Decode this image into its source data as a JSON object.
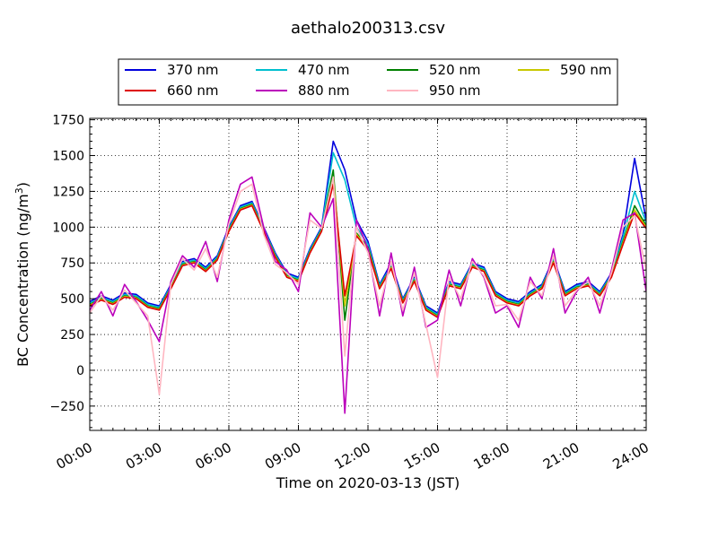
{
  "chart_data": {
    "type": "line",
    "title": "aethalo200313.csv",
    "xlabel": "Time on 2020-03-13 (JST)",
    "ylabel_main": "BC Concentration (ng/m",
    "ylabel_sup": "3",
    "ylabel_tail": ")",
    "xlim": [
      "00:00",
      "24:00"
    ],
    "ylim": [
      -420,
      1760
    ],
    "grid": true,
    "legend_position": "top-center",
    "x_ticks": [
      "00:00",
      "03:00",
      "06:00",
      "09:00",
      "12:00",
      "15:00",
      "18:00",
      "21:00",
      "24:00"
    ],
    "y_ticks": [
      -250,
      0,
      250,
      500,
      750,
      1000,
      1250,
      1500,
      1750
    ],
    "x": [
      "00:00",
      "00:30",
      "01:00",
      "01:30",
      "02:00",
      "02:30",
      "03:00",
      "03:30",
      "04:00",
      "04:30",
      "05:00",
      "05:30",
      "06:00",
      "06:30",
      "07:00",
      "07:30",
      "08:00",
      "08:30",
      "09:00",
      "09:30",
      "10:00",
      "10:30",
      "11:00",
      "11:30",
      "12:00",
      "12:30",
      "13:00",
      "13:30",
      "14:00",
      "14:30",
      "15:00",
      "15:30",
      "16:00",
      "16:30",
      "17:00",
      "17:30",
      "18:00",
      "18:30",
      "19:00",
      "19:30",
      "20:00",
      "20:30",
      "21:00",
      "21:30",
      "22:00",
      "22:30",
      "23:00",
      "23:30",
      "24:00"
    ],
    "series": [
      {
        "name": "370 nm",
        "color": "#0000dd",
        "values": [
          480,
          520,
          490,
          540,
          530,
          470,
          450,
          600,
          760,
          780,
          720,
          800,
          1000,
          1150,
          1180,
          1000,
          820,
          680,
          650,
          850,
          1000,
          1600,
          1400,
          1050,
          900,
          600,
          750,
          500,
          650,
          450,
          400,
          620,
          600,
          750,
          720,
          550,
          500,
          480,
          550,
          600,
          780,
          550,
          600,
          620,
          550,
          680,
          950,
          1480,
          1050
        ]
      },
      {
        "name": "470 nm",
        "color": "#00bfcf",
        "values": [
          470,
          510,
          480,
          530,
          520,
          460,
          440,
          590,
          750,
          770,
          710,
          790,
          990,
          1140,
          1170,
          990,
          810,
          670,
          640,
          840,
          990,
          1520,
          1330,
          1000,
          880,
          590,
          730,
          490,
          640,
          440,
          390,
          610,
          590,
          740,
          710,
          540,
          490,
          470,
          540,
          590,
          770,
          540,
          590,
          610,
          540,
          670,
          930,
          1250,
          1030
        ]
      },
      {
        "name": "520 nm",
        "color": "#008000",
        "values": [
          460,
          500,
          470,
          520,
          510,
          450,
          430,
          580,
          740,
          760,
          700,
          780,
          980,
          1130,
          1160,
          980,
          800,
          660,
          630,
          830,
          980,
          1400,
          350,
          960,
          860,
          580,
          720,
          480,
          630,
          430,
          380,
          600,
          580,
          730,
          700,
          530,
          480,
          460,
          530,
          580,
          760,
          530,
          580,
          600,
          530,
          660,
          900,
          1150,
          1010
        ]
      },
      {
        "name": "590 nm",
        "color": "#c8c800",
        "values": [
          455,
          495,
          465,
          515,
          505,
          445,
          425,
          575,
          735,
          755,
          695,
          775,
          975,
          1125,
          1155,
          975,
          795,
          655,
          625,
          825,
          975,
          1350,
          450,
          950,
          850,
          575,
          715,
          475,
          625,
          425,
          375,
          595,
          575,
          725,
          695,
          525,
          475,
          455,
          525,
          575,
          755,
          525,
          575,
          595,
          525,
          655,
          890,
          1120,
          1000
        ]
      },
      {
        "name": "660 nm",
        "color": "#dd0000",
        "values": [
          450,
          490,
          460,
          510,
          500,
          440,
          420,
          570,
          730,
          750,
          690,
          770,
          970,
          1120,
          1150,
          970,
          790,
          650,
          620,
          820,
          970,
          1300,
          520,
          940,
          840,
          570,
          710,
          470,
          620,
          420,
          370,
          590,
          570,
          720,
          690,
          520,
          470,
          450,
          520,
          570,
          750,
          520,
          570,
          590,
          520,
          650,
          880,
          1100,
          990
        ]
      },
      {
        "name": "880 nm",
        "color": "#bb00bb",
        "values": [
          420,
          550,
          380,
          600,
          480,
          350,
          200,
          620,
          800,
          720,
          900,
          620,
          1050,
          1300,
          1350,
          1000,
          760,
          700,
          550,
          1100,
          1000,
          1200,
          -300,
          1050,
          850,
          380,
          820,
          380,
          720,
          300,
          350,
          700,
          450,
          780,
          650,
          400,
          450,
          300,
          650,
          500,
          850,
          400,
          550,
          650,
          400,
          700,
          1050,
          1100,
          550
        ]
      },
      {
        "name": "950 nm",
        "color": "#ffb6c1",
        "values": [
          400,
          520,
          420,
          560,
          470,
          380,
          -170,
          600,
          780,
          700,
          850,
          650,
          1020,
          1250,
          1300,
          950,
          740,
          680,
          600,
          1050,
          990,
          1350,
          100,
          1000,
          820,
          450,
          760,
          420,
          680,
          320,
          -50,
          650,
          500,
          760,
          660,
          450,
          460,
          350,
          620,
          520,
          800,
          450,
          560,
          620,
          450,
          680,
          1000,
          1080,
          700
        ]
      }
    ]
  }
}
